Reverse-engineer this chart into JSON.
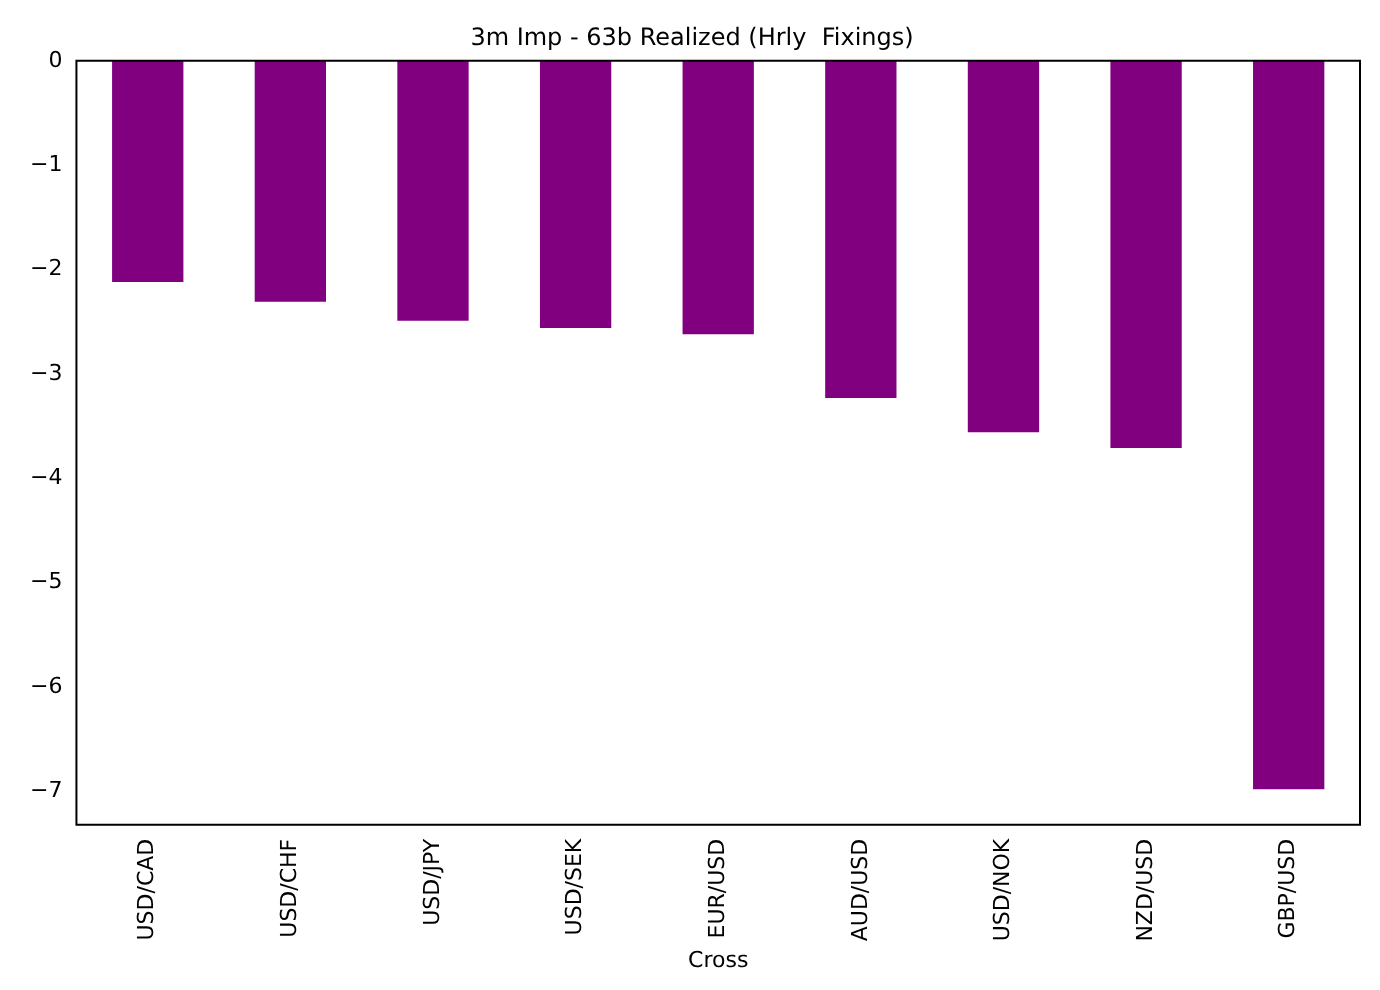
{
  "chart_data": {
    "type": "bar",
    "title": "3m Imp - 63b Realized (Hrly  Fixings)",
    "xlabel": "Cross",
    "categories": [
      "USD/CAD",
      "USD/CHF",
      "USD/JPY",
      "USD/SEK",
      "EUR/USD",
      "AUD/USD",
      "USD/NOK",
      "NZD/USD",
      "GBP/USD"
    ],
    "values": [
      -2.12,
      -2.31,
      -2.49,
      -2.56,
      -2.62,
      -3.23,
      -3.56,
      -3.71,
      -6.98
    ],
    "color": "#800080",
    "ylim": [
      -7.32,
      0
    ],
    "yticks": [
      -7,
      -6,
      -5,
      -4,
      -3,
      -2,
      -1,
      0
    ],
    "grid": false,
    "legend": false
  }
}
